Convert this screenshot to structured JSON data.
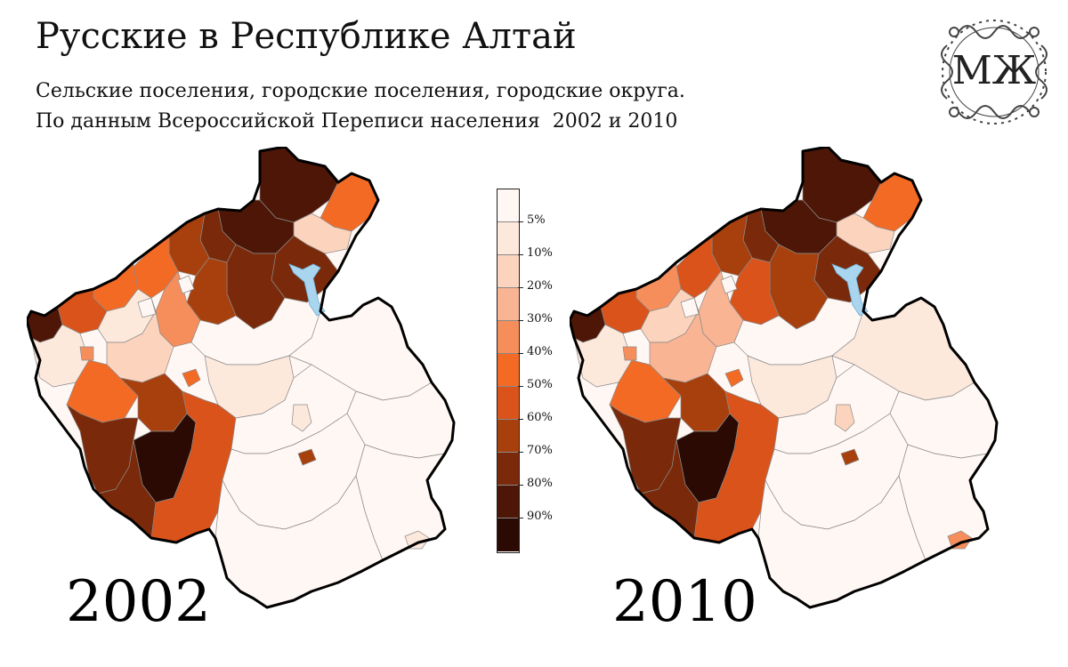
{
  "title": "Русские в Республике Алтай",
  "subtitle_line1": "Сельские поселения, городские поселения, городские округа.",
  "subtitle_line2": "По данным Всероссийской Переписи населения",
  "subtitle_years": "2002 и 2010",
  "logo_text": "МЖ",
  "maps": [
    {
      "year": "2002",
      "label": "2002"
    },
    {
      "year": "2010",
      "label": "2010"
    }
  ],
  "legend": {
    "labels": [
      "5%",
      "10%",
      "20%",
      "30%",
      "40%",
      "50%",
      "60%",
      "70%",
      "80%",
      "90%"
    ],
    "colors": [
      "#fff7f3",
      "#fde8dc",
      "#fcd3bd",
      "#f9b493",
      "#f68e5c",
      "#f36a25",
      "#d9531a",
      "#a8400e",
      "#7a2a0a",
      "#4d1606",
      "#2a0a02"
    ]
  },
  "colors": {
    "water": "#a9d6ee",
    "border_outer": "#000000",
    "border_inner": "#8a8a8a"
  }
}
